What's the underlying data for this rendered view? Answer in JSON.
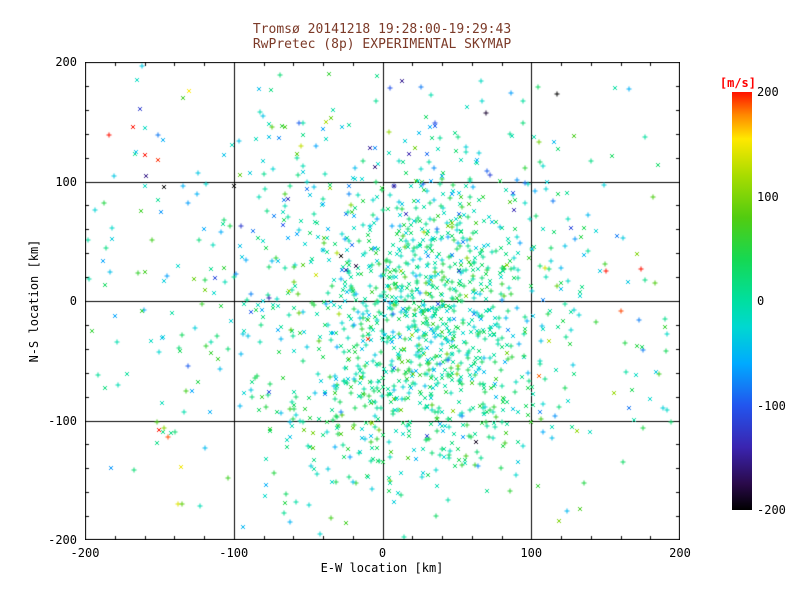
{
  "page": {
    "background_color": "#ffffff"
  },
  "chart_data": {
    "type": "scatter",
    "title": "Tromsø 20141218 19:28:00-19:29:43",
    "subtitle": "RwPretec (8p) EXPERIMENTAL SKYMAP",
    "xlabel": "E-W location [km]",
    "ylabel": "N-S location [km]",
    "xlim": [
      -200,
      200
    ],
    "ylim": [
      -200,
      200
    ],
    "xticks": [
      -200,
      -100,
      0,
      100,
      200
    ],
    "yticks": [
      -200,
      -100,
      0,
      100,
      200
    ],
    "grid": true,
    "grid_lines_x": [
      -100,
      0,
      100
    ],
    "grid_lines_y": [
      -100,
      0,
      100
    ],
    "minor_tick_step": 20,
    "colors": {
      "title": "#7c3a28",
      "axis": "#000000",
      "tick_label": "#000000"
    },
    "colorbar": {
      "label": "[m/s]",
      "label_color": "#ff0000",
      "min": -200,
      "max": 200,
      "ticks": [
        200,
        100,
        0,
        -100,
        -200
      ]
    },
    "colormap_stops": [
      {
        "v": -200,
        "color": "#000000"
      },
      {
        "v": -175,
        "color": "#2a0a4a"
      },
      {
        "v": -140,
        "color": "#3a24b0"
      },
      {
        "v": -100,
        "color": "#2255ee"
      },
      {
        "v": -60,
        "color": "#00aaff"
      },
      {
        "v": -25,
        "color": "#00d8d0"
      },
      {
        "v": 0,
        "color": "#00dfa0"
      },
      {
        "v": 40,
        "color": "#16d852"
      },
      {
        "v": 80,
        "color": "#52cc10"
      },
      {
        "v": 120,
        "color": "#a8dc00"
      },
      {
        "v": 155,
        "color": "#ffe800"
      },
      {
        "v": 178,
        "color": "#ff8800"
      },
      {
        "v": 200,
        "color": "#ff1100"
      }
    ],
    "marker_types": [
      "x",
      "+"
    ],
    "marker_x_fraction": 0.55,
    "marker_size_px": 5,
    "seed": 20141218,
    "point_clusters": [
      {
        "name": "dense-core",
        "n": 650,
        "cx": 30,
        "cy": 5,
        "sx": 38,
        "sy": 48,
        "v_mean": 5,
        "v_sigma": 35
      },
      {
        "name": "lower-band",
        "n": 300,
        "cx": 15,
        "cy": -85,
        "sx": 55,
        "sy": 35,
        "v_mean": 15,
        "v_sigma": 35
      },
      {
        "name": "broad-cloud",
        "n": 450,
        "cx": 0,
        "cy": -5,
        "sx": 100,
        "sy": 90,
        "v_mean": 0,
        "v_sigma": 45
      },
      {
        "name": "upper-region",
        "n": 130,
        "cx": 0,
        "cy": 95,
        "sx": 75,
        "sy": 40,
        "v_mean": -30,
        "v_sigma": 55
      },
      {
        "name": "wide-sparse",
        "n": 150,
        "cx": 0,
        "cy": 0,
        "sx": 170,
        "sy": 140,
        "v_mean": 5,
        "v_sigma": 60
      }
    ],
    "outlier_points": [
      {
        "x": -168,
        "y": 146,
        "v": 200,
        "m": "x"
      },
      {
        "x": -160,
        "y": 122,
        "v": 200,
        "m": "x"
      },
      {
        "x": -151,
        "y": 118,
        "v": 195,
        "m": "x"
      },
      {
        "x": -184,
        "y": 139,
        "v": 200,
        "m": "+"
      },
      {
        "x": -130,
        "y": 176,
        "v": 155,
        "m": "x"
      },
      {
        "x": -163,
        "y": 161,
        "v": -120,
        "m": "x"
      },
      {
        "x": -147,
        "y": 95,
        "v": -200,
        "m": "x"
      },
      {
        "x": -100,
        "y": 96,
        "v": -200,
        "m": "x"
      },
      {
        "x": -150,
        "y": -108,
        "v": 200,
        "m": "x"
      },
      {
        "x": 150,
        "y": 25,
        "v": 200,
        "m": "+"
      },
      {
        "x": 174,
        "y": 27,
        "v": 200,
        "m": "+"
      },
      {
        "x": 160,
        "y": -8,
        "v": 190,
        "m": "+"
      },
      {
        "x": -28,
        "y": 38,
        "v": -200,
        "m": "x"
      },
      {
        "x": -18,
        "y": 29,
        "v": -180,
        "m": "x"
      },
      {
        "x": -5,
        "y": 112,
        "v": -160,
        "m": "x"
      },
      {
        "x": 8,
        "y": 96,
        "v": -150,
        "m": "+"
      },
      {
        "x": 18,
        "y": 123,
        "v": -140,
        "m": "x"
      },
      {
        "x": -55,
        "y": 130,
        "v": 130,
        "m": "+"
      },
      {
        "x": -38,
        "y": 150,
        "v": 120,
        "m": "x"
      },
      {
        "x": 105,
        "y": -63,
        "v": 185,
        "m": "x"
      },
      {
        "x": -10,
        "y": -32,
        "v": 195,
        "m": "x"
      },
      {
        "x": 63,
        "y": -118,
        "v": -190,
        "m": "x"
      },
      {
        "x": -120,
        "y": 60,
        "v": -60,
        "m": "x"
      }
    ]
  }
}
